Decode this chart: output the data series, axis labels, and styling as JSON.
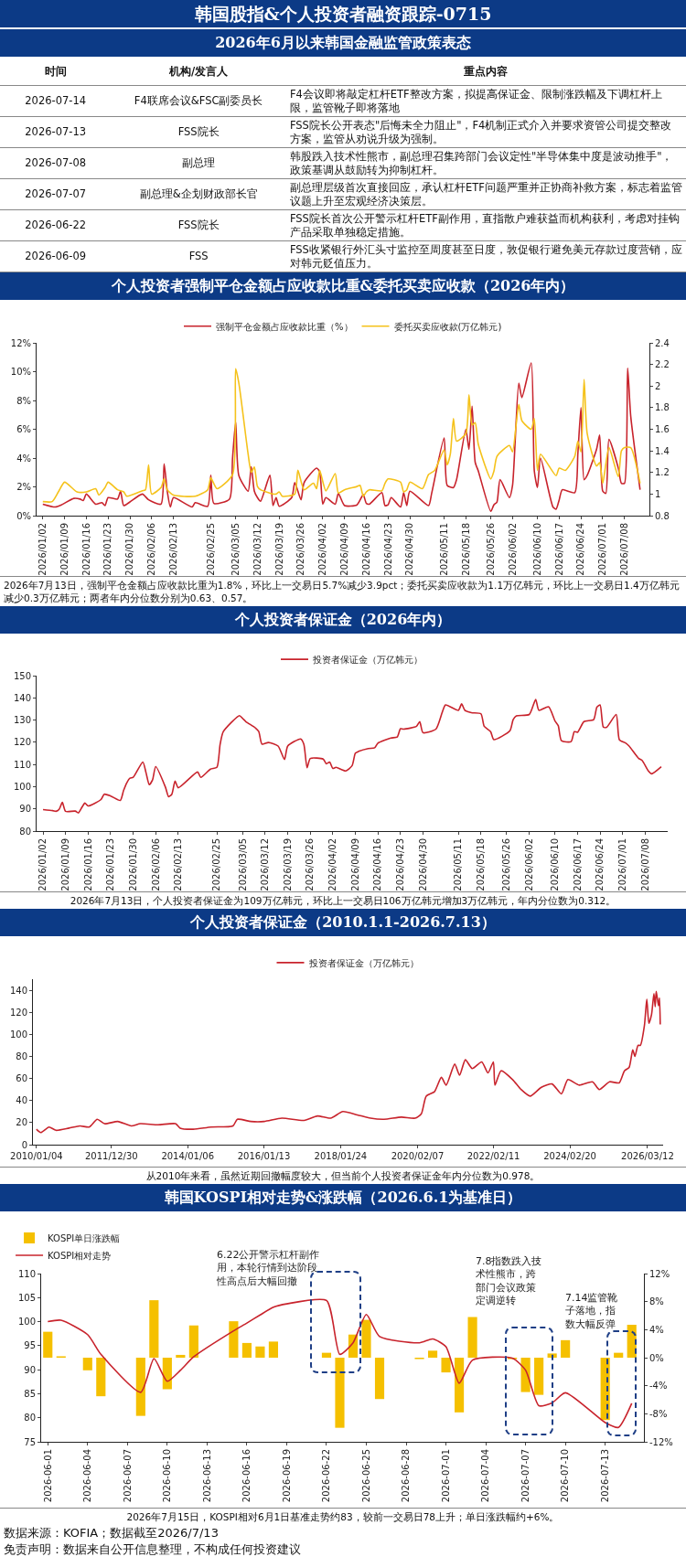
{
  "chart_data": [
    {
      "type": "other",
      "title": "韩国股指&个人投资者融资跟踪-0715",
      "subtitle": "2026年6月以来韩国金融监管政策表态",
      "categories": [
        "时间",
        "机构/发言人",
        "重点内容"
      ],
      "cell_labels": [
        [
          "2026-07-14",
          "F4联席会议&FSC副委员长",
          "F4会议即将敲定杠杆ETF整改方案，拟提高保证金、限制涨跌幅及下调杠杆上限，监管靴子即将落地"
        ],
        [
          "2026-07-13",
          "FSS院长",
          "FSS院长公开表态\"后悔未全力阻止\"，F4机制正式介入并要求资管公司提交整改方案，监管从劝说升级为强制。"
        ],
        [
          "2026-07-08",
          "副总理",
          "韩股跌入技术性熊市，副总理召集跨部门会议定性\"半导体集中度是波动推手\"，政策基调从鼓励转为抑制杠杆。"
        ],
        [
          "2026-07-07",
          "副总理&企划财政部长官",
          "副总理层级首次直接回应，承认杠杆ETF问题严重并正协商补救方案，标志着监管议题上升至宏观经济决策层。"
        ],
        [
          "2026-06-22",
          "FSS院长",
          "FSS院长首次公开警示杠杆ETF副作用，直指散户难获益而机构获利，考虑对挂钩产品采取单独稳定措施。"
        ],
        [
          "2026-06-09",
          "FSS",
          "FSS收紧银行外汇头寸监控至周度甚至日度，敦促银行避免美元存款过度营销，应对韩元贬值压力。"
        ]
      ]
    },
    {
      "type": "line",
      "title": "个人投资者强制平仓金额占应收款比重&委托买卖应收款（2026年内）",
      "legend": "top",
      "xlim": [
        "2025-12-31",
        "2026-07-16"
      ],
      "xticks": [
        {
          "value": "2026-01-02",
          "label": "2026/01/02"
        },
        {
          "value": "2026-01-09",
          "label": "2026/01/09"
        },
        {
          "value": "2026-01-16",
          "label": "2026/01/16"
        },
        {
          "value": "2026-01-23",
          "label": "2026/01/23"
        },
        {
          "value": "2026-01-30",
          "label": "2026/01/30"
        },
        {
          "value": "2026-02-06",
          "label": "2026/02/06"
        },
        {
          "value": "2026-02-13",
          "label": "2026/02/13"
        },
        {
          "value": "2026-02-25",
          "label": "2026/02/25"
        },
        {
          "value": "2026-03-05",
          "label": "2026/03/05"
        },
        {
          "value": "2026-03-12",
          "label": "2026/03/12"
        },
        {
          "value": "2026-03-19",
          "label": "2026/03/19"
        },
        {
          "value": "2026-03-26",
          "label": "2026/03/26"
        },
        {
          "value": "2026-04-02",
          "label": "2026/04/02"
        },
        {
          "value": "2026-04-09",
          "label": "2026/04/09"
        },
        {
          "value": "2026-04-16",
          "label": "2026/04/16"
        },
        {
          "value": "2026-04-23",
          "label": "2026/04/23"
        },
        {
          "value": "2026-04-30",
          "label": "2026/04/30"
        },
        {
          "value": "2026-05-11",
          "label": "2026/05/11"
        },
        {
          "value": "2026-05-18",
          "label": "2026/05/18"
        },
        {
          "value": "2026-05-26",
          "label": "2026/05/26"
        },
        {
          "value": "2026-06-02",
          "label": "2026/06/02"
        },
        {
          "value": "2026-06-10",
          "label": "2026/06/10"
        },
        {
          "value": "2026-06-17",
          "label": "2026/06/17"
        },
        {
          "value": "2026-06-24",
          "label": "2026/06/24"
        },
        {
          "value": "2026-07-01",
          "label": "2026/07/01"
        },
        {
          "value": "2026-07-08",
          "label": "2026/07/08"
        }
      ],
      "ylim": [
        0,
        12
      ],
      "yticks": [
        {
          "value": 0,
          "label": "0%"
        },
        {
          "value": 2,
          "label": "2%"
        },
        {
          "value": 4,
          "label": "4%"
        },
        {
          "value": 6,
          "label": "6%"
        },
        {
          "value": 8,
          "label": "8%"
        },
        {
          "value": 10,
          "label": "10%"
        },
        {
          "value": 12,
          "label": "12%"
        }
      ],
      "y2lim": [
        0.8,
        2.4
      ],
      "y2ticks": [
        0.8,
        1,
        1.2,
        1.4,
        1.6,
        1.8,
        2,
        2.2,
        2.4
      ],
      "series": [
        {
          "name": "强制平仓金额占应收款比重（%）",
          "color": "#c8232c",
          "x": [
            "2026-01-02",
            "2026-01-06",
            "2026-01-08",
            "2026-01-12",
            "2026-01-14",
            "2026-01-15",
            "2026-01-16",
            "2026-01-19",
            "2026-01-21",
            "2026-01-22",
            "2026-01-23",
            "2026-01-26",
            "2026-01-27",
            "2026-01-28",
            "2026-01-30",
            "2026-02-03",
            "2026-02-05",
            "2026-02-09",
            "2026-02-10",
            "2026-02-11",
            "2026-02-12",
            "2026-02-13",
            "2026-02-19",
            "2026-02-20",
            "2026-02-24",
            "2026-02-25",
            "2026-02-26",
            "2026-03-03",
            "2026-03-04",
            "2026-03-05",
            "2026-03-06",
            "2026-03-09",
            "2026-03-10",
            "2026-03-11",
            "2026-03-12",
            "2026-03-13",
            "2026-03-16",
            "2026-03-17",
            "2026-03-18",
            "2026-03-19",
            "2026-03-23",
            "2026-03-24",
            "2026-03-26",
            "2026-03-27",
            "2026-03-31",
            "2026-04-01",
            "2026-04-02",
            "2026-04-03",
            "2026-04-06",
            "2026-04-07",
            "2026-04-09",
            "2026-04-13",
            "2026-04-15",
            "2026-04-16",
            "2026-04-17",
            "2026-04-21",
            "2026-04-22",
            "2026-04-23",
            "2026-04-24",
            "2026-04-27",
            "2026-04-28",
            "2026-04-29",
            "2026-04-30",
            "2026-05-06",
            "2026-05-07",
            "2026-05-11",
            "2026-05-12",
            "2026-05-14",
            "2026-05-15",
            "2026-05-18",
            "2026-05-19",
            "2026-05-20",
            "2026-05-21",
            "2026-05-22",
            "2026-05-26",
            "2026-05-27",
            "2026-05-28",
            "2026-05-29",
            "2026-06-01",
            "2026-06-02",
            "2026-06-04",
            "2026-06-05",
            "2026-06-08",
            "2026-06-09",
            "2026-06-10",
            "2026-06-11",
            "2026-06-15",
            "2026-06-16",
            "2026-06-17",
            "2026-06-18",
            "2026-06-22",
            "2026-06-23",
            "2026-06-24",
            "2026-06-25",
            "2026-06-26",
            "2026-06-29",
            "2026-06-30",
            "2026-07-01",
            "2026-07-02",
            "2026-07-03",
            "2026-07-06",
            "2026-07-07",
            "2026-07-08",
            "2026-07-09",
            "2026-07-10",
            "2026-07-13"
          ],
          "values": [
            0.8,
            0.6,
            0.75,
            1.2,
            1.15,
            1.05,
            1.5,
            0.8,
            0.9,
            0.7,
            1.25,
            1.15,
            1.7,
            0.7,
            0.95,
            1.5,
            1.1,
            0.8,
            3.6,
            1.7,
            0.6,
            1.25,
            0.6,
            0.9,
            0.65,
            2.8,
            0.85,
            1.15,
            4.0,
            6.5,
            2.8,
            1.7,
            3.4,
            1.7,
            1.25,
            1.0,
            2.8,
            0.7,
            1.25,
            0.65,
            1.25,
            2.3,
            1.1,
            2.3,
            3.3,
            3.05,
            0.8,
            1.25,
            0.8,
            1.55,
            0.7,
            0.75,
            1.45,
            0.85,
            0.8,
            1.6,
            0.7,
            0.75,
            1.25,
            0.6,
            1.6,
            0.7,
            1.7,
            0.7,
            1.55,
            5.4,
            2.1,
            1.95,
            2.5,
            6.0,
            4.6,
            7.6,
            3.7,
            3.1,
            0.3,
            0.75,
            0.95,
            2.5,
            1.25,
            2.1,
            9.2,
            8.2,
            10.6,
            3.1,
            1.95,
            4.0,
            0.6,
            0.45,
            1.1,
            1.8,
            1.6,
            4.3,
            7.5,
            2.5,
            2.8,
            4.6,
            5.6,
            1.7,
            1.55,
            5.3,
            3.3,
            2.25,
            2.25,
            10.25,
            6.9,
            1.8
          ]
        },
        {
          "name": "委托买卖应收款(万亿韩元)",
          "color": "#f5c21b",
          "axis": "y2",
          "x": [
            "2026-01-02",
            "2026-01-05",
            "2026-01-07",
            "2026-01-09",
            "2026-01-13",
            "2026-01-16",
            "2026-01-19",
            "2026-01-20",
            "2026-01-22",
            "2026-01-23",
            "2026-01-26",
            "2026-01-28",
            "2026-01-29",
            "2026-02-03",
            "2026-02-04",
            "2026-02-05",
            "2026-02-06",
            "2026-02-09",
            "2026-02-10",
            "2026-02-11",
            "2026-02-13",
            "2026-02-20",
            "2026-02-24",
            "2026-02-25",
            "2026-02-27",
            "2026-03-04",
            "2026-03-05",
            "2026-03-06",
            "2026-03-09",
            "2026-03-10",
            "2026-03-11",
            "2026-03-12",
            "2026-03-13",
            "2026-03-17",
            "2026-03-18",
            "2026-03-19",
            "2026-03-20",
            "2026-03-24",
            "2026-03-25",
            "2026-03-27",
            "2026-03-30",
            "2026-03-31",
            "2026-04-01",
            "2026-04-03",
            "2026-04-06",
            "2026-04-07",
            "2026-04-09",
            "2026-04-13",
            "2026-04-14",
            "2026-04-15",
            "2026-04-16",
            "2026-04-17",
            "2026-04-21",
            "2026-04-22",
            "2026-04-23",
            "2026-04-27",
            "2026-04-28",
            "2026-04-29",
            "2026-04-30",
            "2026-05-04",
            "2026-05-06",
            "2026-05-08",
            "2026-05-11",
            "2026-05-12",
            "2026-05-13",
            "2026-05-14",
            "2026-05-15",
            "2026-05-18",
            "2026-05-19",
            "2026-05-20",
            "2026-05-21",
            "2026-05-22",
            "2026-05-26",
            "2026-05-27",
            "2026-05-28",
            "2026-06-01",
            "2026-06-02",
            "2026-06-04",
            "2026-06-05",
            "2026-06-08",
            "2026-06-09",
            "2026-06-10",
            "2026-06-11",
            "2026-06-16",
            "2026-06-17",
            "2026-06-19",
            "2026-06-22",
            "2026-06-23",
            "2026-06-24",
            "2026-06-25",
            "2026-06-26",
            "2026-06-29",
            "2026-06-30",
            "2026-07-01",
            "2026-07-03",
            "2026-07-06",
            "2026-07-07",
            "2026-07-08",
            "2026-07-10",
            "2026-07-13"
          ],
          "values": [
            0.93,
            0.93,
            1.02,
            1.11,
            1.02,
            1.02,
            1.05,
            0.99,
            1.06,
            1.11,
            1.04,
            1.02,
            0.98,
            1.03,
            1.04,
            1.27,
            1.0,
            1.06,
            1.14,
            1.04,
            0.99,
            0.98,
            1.04,
            1.15,
            1.05,
            1.18,
            2.16,
            2.03,
            1.37,
            1.2,
            1.25,
            1.07,
            1.04,
            1.0,
            1.0,
            1.02,
            0.98,
            1.0,
            1.22,
            1.04,
            1.1,
            1.05,
            1.22,
            1.03,
            1.19,
            1.01,
            1.04,
            1.07,
            1.08,
            0.98,
            1.02,
            1.04,
            1.03,
            1.1,
            1.14,
            1.11,
            1.02,
            1.04,
            1.11,
            1.05,
            1.18,
            1.22,
            1.41,
            1.27,
            1.37,
            1.7,
            1.49,
            1.56,
            1.92,
            1.64,
            1.66,
            1.46,
            1.14,
            1.21,
            1.35,
            1.45,
            1.39,
            1.83,
            1.68,
            1.6,
            1.7,
            1.22,
            1.37,
            1.17,
            1.24,
            1.22,
            1.35,
            1.49,
            1.39,
            2.06,
            1.56,
            1.26,
            1.29,
            1.1,
            1.43,
            1.16,
            1.4,
            1.43,
            1.43,
            1.1
          ]
        }
      ],
      "annotations": [
        "2026年7月13日，强制平仓金额占应收款比重为1.8%，环比上一交易日5.7%减少3.9pct；委托买卖应收款为1.1万亿韩元，环比上一交易日1.4万亿韩元减少0.3万亿韩元；两者年内分位数分别为0.63、0.57。"
      ]
    },
    {
      "type": "line",
      "title": "个人投资者保证金（2026年内）",
      "legend": "top",
      "xlim": [
        "2025-12-31",
        "2026-07-15"
      ],
      "xticks": [
        {
          "value": "2026-01-02",
          "label": "2026/01/02"
        },
        {
          "value": "2026-01-09",
          "label": "2026/01/09"
        },
        {
          "value": "2026-01-16",
          "label": "2026/01/16"
        },
        {
          "value": "2026-01-23",
          "label": "2026/01/23"
        },
        {
          "value": "2026-01-30",
          "label": "2026/01/30"
        },
        {
          "value": "2026-02-06",
          "label": "2026/02/06"
        },
        {
          "value": "2026-02-13",
          "label": "2026/02/13"
        },
        {
          "value": "2026-02-25",
          "label": "2026/02/25"
        },
        {
          "value": "2026-03-05",
          "label": "2026/03/05"
        },
        {
          "value": "2026-03-12",
          "label": "2026/03/12"
        },
        {
          "value": "2026-03-19",
          "label": "2026/03/19"
        },
        {
          "value": "2026-03-26",
          "label": "2026/03/26"
        },
        {
          "value": "2026-04-02",
          "label": "2026/04/02"
        },
        {
          "value": "2026-04-09",
          "label": "2026/04/09"
        },
        {
          "value": "2026-04-16",
          "label": "2026/04/16"
        },
        {
          "value": "2026-04-23",
          "label": "2026/04/23"
        },
        {
          "value": "2026-04-30",
          "label": "2026/04/30"
        },
        {
          "value": "2026-05-11",
          "label": "2026/05/11"
        },
        {
          "value": "2026-05-18",
          "label": "2026/05/18"
        },
        {
          "value": "2026-05-26",
          "label": "2026/05/26"
        },
        {
          "value": "2026-06-02",
          "label": "2026/06/02"
        },
        {
          "value": "2026-06-10",
          "label": "2026/06/10"
        },
        {
          "value": "2026-06-17",
          "label": "2026/06/17"
        },
        {
          "value": "2026-06-24",
          "label": "2026/06/24"
        },
        {
          "value": "2026-07-01",
          "label": "2026/07/01"
        },
        {
          "value": "2026-07-08",
          "label": "2026/07/08"
        }
      ],
      "ylim": [
        80,
        150
      ],
      "yticks": [
        80,
        90,
        100,
        110,
        120,
        130,
        140,
        150
      ],
      "series": [
        {
          "name": "投资者保证金（万亿韩元）",
          "color": "#c8232c",
          "x": [
            "2026-01-02",
            "2026-01-05",
            "2026-01-06",
            "2026-01-07",
            "2026-01-08",
            "2026-01-09",
            "2026-01-12",
            "2026-01-13",
            "2026-01-14",
            "2026-01-15",
            "2026-01-16",
            "2026-01-20",
            "2026-01-21",
            "2026-01-23",
            "2026-01-26",
            "2026-01-27",
            "2026-01-28",
            "2026-01-29",
            "2026-01-30",
            "2026-02-02",
            "2026-02-03",
            "2026-02-04",
            "2026-02-05",
            "2026-02-06",
            "2026-02-09",
            "2026-02-10",
            "2026-02-11",
            "2026-02-12",
            "2026-02-13",
            "2026-02-19",
            "2026-02-20",
            "2026-02-23",
            "2026-02-25",
            "2026-02-26",
            "2026-02-27",
            "2026-03-04",
            "2026-03-05",
            "2026-03-06",
            "2026-03-09",
            "2026-03-10",
            "2026-03-11",
            "2026-03-13",
            "2026-03-16",
            "2026-03-18",
            "2026-03-19",
            "2026-03-23",
            "2026-03-24",
            "2026-03-25",
            "2026-03-26",
            "2026-03-30",
            "2026-03-31",
            "2026-04-01",
            "2026-04-02",
            "2026-04-03",
            "2026-04-06",
            "2026-04-08",
            "2026-04-09",
            "2026-04-10",
            "2026-04-13",
            "2026-04-15",
            "2026-04-16",
            "2026-04-20",
            "2026-04-22",
            "2026-04-23",
            "2026-04-24",
            "2026-04-28",
            "2026-04-29",
            "2026-04-30",
            "2026-05-04",
            "2026-05-06",
            "2026-05-07",
            "2026-05-11",
            "2026-05-12",
            "2026-05-13",
            "2026-05-15",
            "2026-05-18",
            "2026-05-19",
            "2026-05-21",
            "2026-05-22",
            "2026-05-27",
            "2026-05-28",
            "2026-05-29",
            "2026-06-02",
            "2026-06-04",
            "2026-06-05",
            "2026-06-08",
            "2026-06-10",
            "2026-06-11",
            "2026-06-12",
            "2026-06-15",
            "2026-06-16",
            "2026-06-17",
            "2026-06-19",
            "2026-06-22",
            "2026-06-23",
            "2026-06-24",
            "2026-06-25",
            "2026-06-26",
            "2026-06-29",
            "2026-06-30",
            "2026-07-02",
            "2026-07-03",
            "2026-07-06",
            "2026-07-07",
            "2026-07-09",
            "2026-07-10",
            "2026-07-13"
          ],
          "values": [
            89.7,
            89.2,
            88.9,
            89.8,
            92.9,
            88.9,
            89.0,
            88.2,
            90.5,
            92.6,
            91.3,
            94.2,
            96.6,
            95.8,
            93.8,
            98.2,
            101.7,
            103.8,
            104.2,
            111.1,
            106.2,
            100.9,
            103.0,
            109.0,
            99.8,
            95.5,
            96.6,
            102.5,
            99.5,
            106.6,
            104.2,
            107.9,
            108.7,
            119.1,
            124.8,
            132.0,
            130.7,
            129.3,
            126.4,
            124.8,
            119.1,
            119.9,
            118.3,
            112.2,
            118.3,
            121.5,
            119.1,
            108.5,
            112.7,
            112.4,
            110.3,
            111.1,
            108.2,
            108.7,
            107.1,
            109.5,
            115.1,
            115.9,
            117.2,
            117.5,
            119.6,
            121.9,
            122.4,
            126.1,
            125.9,
            127.2,
            129.3,
            124.3,
            125.9,
            133.6,
            136.8,
            134.4,
            137.3,
            134.4,
            133.3,
            132.8,
            127.2,
            124.8,
            121.2,
            125.2,
            130.2,
            131.9,
            132.5,
            139.3,
            134.4,
            136.0,
            129.6,
            127.5,
            120.7,
            120.3,
            124.8,
            124.5,
            129.3,
            130.2,
            135.8,
            136.8,
            126.9,
            126.7,
            132.5,
            121.1,
            119.6,
            118.3,
            112.7,
            111.9,
            107.1,
            105.8,
            109
          ]
        }
      ],
      "annotations": [
        "2026年7月13日，个人投资者保证金为109万亿韩元，环比上一交易日106万亿韩元增加3万亿韩元，年内分位数为0.312。"
      ]
    },
    {
      "type": "line",
      "title": "个人投资者保证金（2010.1.1-2026.7.13）",
      "legend": "top",
      "xlim": [
        "2009-12-01",
        "2026-08-10"
      ],
      "xticks": [
        {
          "value": "2010-01-04",
          "label": "2010/01/04"
        },
        {
          "value": "2011-12-30",
          "label": "2011/12/30"
        },
        {
          "value": "2014-01-06",
          "label": "2014/01/06"
        },
        {
          "value": "2016-01-13",
          "label": "2016/01/13"
        },
        {
          "value": "2018-01-24",
          "label": "2018/01/24"
        },
        {
          "value": "2020-02-07",
          "label": "2020/02/07"
        },
        {
          "value": "2022-02-11",
          "label": "2022/02/11"
        },
        {
          "value": "2024-02-20",
          "label": "2024/02/20"
        },
        {
          "value": "2026-03-12",
          "label": "2026/03/12"
        }
      ],
      "ylim": [
        0,
        150
      ],
      "yticks": [
        0,
        20,
        40,
        60,
        80,
        100,
        120,
        140
      ],
      "series": [
        {
          "name": "投资者保证金（万亿韩元）",
          "color": "#c8232c",
          "x": [
            "2010-01-04",
            "2010-02-15",
            "2010-05-06",
            "2010-07-12",
            "2010-11-15",
            "2011-03-01",
            "2011-05-30",
            "2011-08-15",
            "2011-10-25",
            "2012-03-01",
            "2012-07-10",
            "2012-10-05",
            "2013-03-25",
            "2013-09-10",
            "2013-10-25",
            "2014-03-01",
            "2014-08-20",
            "2015-03-20",
            "2015-05-01",
            "2015-09-10",
            "2016-01-15",
            "2016-07-05",
            "2017-02-05",
            "2017-06-15",
            "2017-10-20",
            "2018-02-15",
            "2018-07-05",
            "2018-11-10",
            "2019-03-20",
            "2019-09-05",
            "2020-01-15",
            "2020-03-15",
            "2020-05-01",
            "2020-07-20",
            "2020-09-25",
            "2020-11-10",
            "2021-02-01",
            "2021-03-20",
            "2021-05-15",
            "2021-07-20",
            "2021-10-20",
            "2021-12-20",
            "2022-02-10",
            "2022-02-25",
            "2022-04-25",
            "2022-08-15",
            "2022-11-05",
            "2023-02-01",
            "2023-05-20",
            "2023-09-01",
            "2023-11-30",
            "2024-02-01",
            "2024-05-20",
            "2024-09-25",
            "2024-11-30",
            "2025-03-10",
            "2025-06-10",
            "2025-08-01",
            "2025-09-15",
            "2025-10-20",
            "2025-11-10",
            "2025-12-10",
            "2026-01-02",
            "2026-02-10",
            "2026-03-05",
            "2026-03-25",
            "2026-04-20",
            "2026-05-13",
            "2026-05-25",
            "2026-06-04",
            "2026-06-26",
            "2026-07-06",
            "2026-07-13"
          ],
          "values": [
            14,
            11,
            16,
            13,
            15,
            17,
            16,
            23,
            19,
            21,
            17,
            19,
            18,
            19,
            15,
            14,
            16,
            17,
            23,
            21,
            21,
            24,
            22,
            26,
            24,
            30,
            27,
            24,
            23,
            25,
            24,
            28,
            44,
            48,
            61,
            54,
            73,
            63,
            77,
            69,
            75,
            65,
            75,
            54,
            67,
            59,
            50,
            44,
            52,
            55,
            46,
            59,
            54,
            57,
            50,
            57,
            56,
            67,
            70,
            86,
            80,
            90,
            90,
            108,
            132,
            110,
            118,
            137,
            125,
            139,
            126,
            133,
            109
          ]
        }
      ],
      "annotations": [
        "从2010年来看，虽然近期回撤幅度较大，但当前个人投资者保证金年内分位数为0.978。"
      ]
    },
    {
      "type": "bar",
      "title": "韩国KOSPI相对走势&涨跌幅（2026.6.1为基准日）",
      "legend": "top left",
      "xlim": [
        "2026-05-31T12:00",
        "2026-07-15T22:00"
      ],
      "xticks": [
        {
          "value": "2026-06-01",
          "label": "2026-06-01"
        },
        {
          "value": "2026-06-04",
          "label": "2026-06-04"
        },
        {
          "value": "2026-06-07",
          "label": "2026-06-07"
        },
        {
          "value": "2026-06-10",
          "label": "2026-06-10"
        },
        {
          "value": "2026-06-13",
          "label": "2026-06-13"
        },
        {
          "value": "2026-06-16",
          "label": "2026-06-16"
        },
        {
          "value": "2026-06-19",
          "label": "2026-06-19"
        },
        {
          "value": "2026-06-22",
          "label": "2026-06-22"
        },
        {
          "value": "2026-06-25",
          "label": "2026-06-25"
        },
        {
          "value": "2026-06-28",
          "label": "2026-06-28"
        },
        {
          "value": "2026-07-01",
          "label": "2026-07-01"
        },
        {
          "value": "2026-07-04",
          "label": "2026-07-04"
        },
        {
          "value": "2026-07-07",
          "label": "2026-07-07"
        },
        {
          "value": "2026-07-10",
          "label": "2026-07-10"
        },
        {
          "value": "2026-07-13",
          "label": "2026-07-13"
        }
      ],
      "ylim": [
        75,
        110
      ],
      "yticks": [
        75,
        80,
        85,
        90,
        95,
        100,
        105,
        110
      ],
      "y2lim": [
        -12,
        12
      ],
      "y2ticks": [
        {
          "value": -12,
          "label": "-12%"
        },
        {
          "value": -8,
          "label": "-8%"
        },
        {
          "value": -4,
          "label": "-4%"
        },
        {
          "value": 0,
          "label": "0%"
        },
        {
          "value": 4,
          "label": "4%"
        },
        {
          "value": 8,
          "label": "8%"
        },
        {
          "value": 12,
          "label": "12%"
        }
      ],
      "series": [
        {
          "name": "KOSPI单日涨跌幅",
          "type": "bar",
          "color": "#f5c000",
          "axis": "y2",
          "x": [
            "2026-06-01",
            "2026-06-02",
            "2026-06-04",
            "2026-06-05",
            "2026-06-08",
            "2026-06-09",
            "2026-06-10",
            "2026-06-11",
            "2026-06-12",
            "2026-06-15",
            "2026-06-16",
            "2026-06-17",
            "2026-06-18",
            "2026-06-22",
            "2026-06-23",
            "2026-06-24",
            "2026-06-25",
            "2026-06-26",
            "2026-06-29",
            "2026-06-30",
            "2026-07-01",
            "2026-07-02",
            "2026-07-03",
            "2026-07-06",
            "2026-07-07",
            "2026-07-08",
            "2026-07-09",
            "2026-07-10",
            "2026-07-13",
            "2026-07-14",
            "2026-07-15"
          ],
          "values": [
            3.7,
            0.2,
            -1.8,
            -5.5,
            -8.3,
            8.2,
            -4.5,
            0.4,
            4.6,
            5.2,
            2.1,
            1.6,
            2.3,
            0.7,
            -10.0,
            3.3,
            5.4,
            -5.9,
            -0.2,
            1.0,
            -2.1,
            -7.8,
            5.8,
            -0.2,
            -4.9,
            -5.3,
            0.6,
            2.5,
            -8.9,
            0.7,
            4.7
          ]
        },
        {
          "name": "KOSPI相对走势",
          "type": "line",
          "color": "#c8232c",
          "x": [
            "2026-06-01",
            "2026-06-02",
            "2026-06-04",
            "2026-06-05",
            "2026-06-08",
            "2026-06-09",
            "2026-06-10",
            "2026-06-11",
            "2026-06-12",
            "2026-06-15",
            "2026-06-16",
            "2026-06-17",
            "2026-06-18",
            "2026-06-19",
            "2026-06-22",
            "2026-06-23",
            "2026-06-24",
            "2026-06-25",
            "2026-06-26",
            "2026-06-29",
            "2026-06-30",
            "2026-07-01",
            "2026-07-02",
            "2026-07-03",
            "2026-07-06",
            "2026-07-07",
            "2026-07-08",
            "2026-07-09",
            "2026-07-10",
            "2026-07-13",
            "2026-07-14",
            "2026-07-15"
          ],
          "values": [
            100.0,
            100.3,
            97.3,
            93.2,
            85.3,
            92.3,
            87.6,
            89.9,
            92.7,
            98.1,
            99.7,
            101.4,
            103.0,
            103.7,
            104.4,
            93.2,
            95.6,
            101.5,
            96.9,
            95.6,
            96.4,
            94.8,
            87.2,
            92.0,
            92.4,
            89.9,
            82.5,
            83.1,
            85.2,
            79,
            78,
            83
          ]
        }
      ],
      "annotations": [
        "6.22公开警示杠杆副作用，本轮行情到达阶段性高点后大幅回撤",
        "7.8指数跌入技术性熊市，跨部门会议政策定调逆转",
        "7.14监管靴子落地，指数大幅反弹",
        "2026年7月15日，KOSPI相对6月1日基准走势约83，较前一交易日78上升；单日涨跌幅约+6%。",
        "数据来源：KOFIA；数据截至2026/7/13",
        "免责声明：数据来自公开信息整理，不构成任何投资建议"
      ]
    }
  ]
}
